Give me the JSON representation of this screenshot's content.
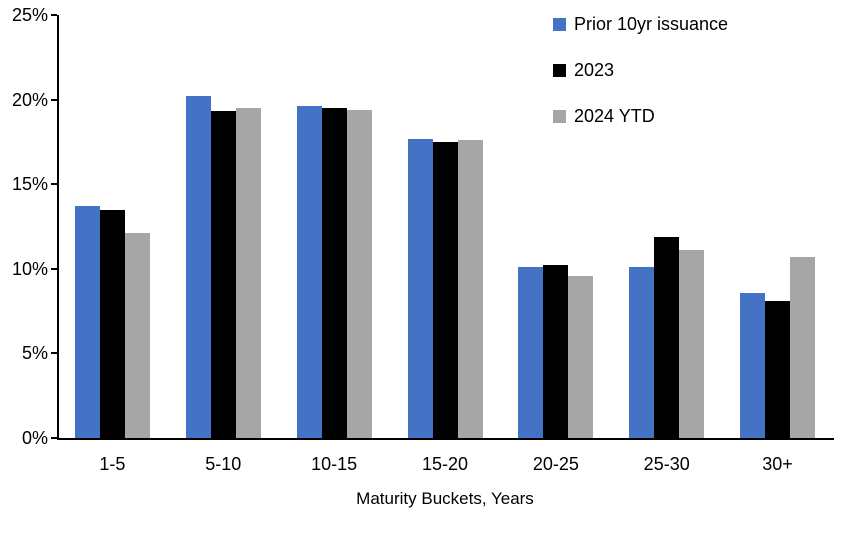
{
  "chart_data": {
    "type": "bar",
    "title": "",
    "xlabel": "Maturity Buckets, Years",
    "ylabel": "",
    "categories": [
      "1-5",
      "5-10",
      "10-15",
      "15-20",
      "20-25",
      "25-30",
      "30+"
    ],
    "series": [
      {
        "name": "Prior 10yr issuance",
        "color": "#4472C4",
        "values": [
          13.7,
          20.2,
          19.6,
          17.7,
          10.1,
          10.1,
          8.6
        ]
      },
      {
        "name": "2023",
        "color": "#000000",
        "values": [
          13.5,
          19.3,
          19.5,
          17.5,
          10.2,
          11.9,
          8.1
        ]
      },
      {
        "name": "2024 YTD",
        "color": "#A6A6A6",
        "values": [
          12.1,
          19.5,
          19.4,
          17.6,
          9.6,
          11.1,
          10.7
        ]
      }
    ],
    "ylim": [
      0,
      25
    ],
    "yticks": [
      0,
      5,
      10,
      15,
      20,
      25
    ],
    "ytick_labels": [
      "0%",
      "5%",
      "10%",
      "15%",
      "20%",
      "25%"
    ],
    "grid": false,
    "legend_position": "top-right",
    "axis_color": "#000000",
    "background_color": "#FFFFFF"
  }
}
